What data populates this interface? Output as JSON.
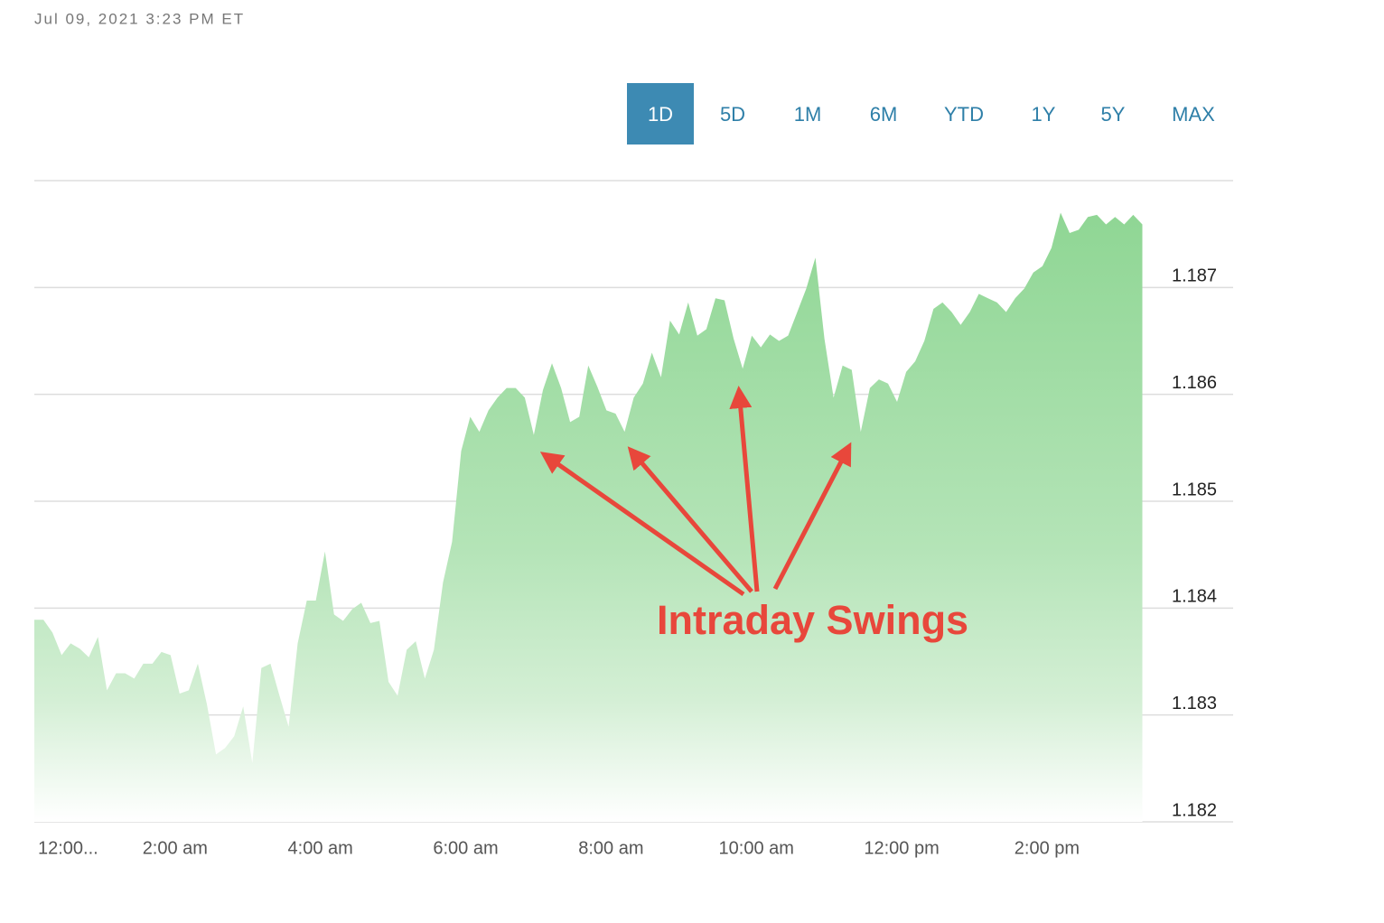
{
  "timestamp": "Jul 09, 2021 3:23 PM ET",
  "range_buttons": [
    "1D",
    "5D",
    "1M",
    "6M",
    "YTD",
    "1Y",
    "5Y",
    "MAX"
  ],
  "active_range": "1D",
  "chart_data": {
    "type": "area",
    "color": "#8fd694",
    "annotation": "Intraday Swings",
    "annotation_color": "#e8473b",
    "grid": true,
    "xlim": [
      0.0625,
      16.5625
    ],
    "ylim": [
      1.182,
      1.188
    ],
    "yticks": [
      1.182,
      1.183,
      1.184,
      1.185,
      1.186,
      1.187
    ],
    "xticks": [
      {
        "value": 0,
        "label": "12:00..."
      },
      {
        "value": 2,
        "label": "2:00 am"
      },
      {
        "value": 4,
        "label": "4:00 am"
      },
      {
        "value": 6,
        "label": "6:00 am"
      },
      {
        "value": 8,
        "label": "8:00 am"
      },
      {
        "value": 10,
        "label": "10:00 am"
      },
      {
        "value": 12,
        "label": "12:00 pm"
      },
      {
        "value": 14,
        "label": "2:00 pm"
      }
    ],
    "x": [
      0.0625,
      0.1875,
      0.3125,
      0.4375,
      0.5625,
      0.6875,
      0.8125,
      0.9375,
      1.0625,
      1.1875,
      1.3125,
      1.4375,
      1.5625,
      1.6875,
      1.8125,
      1.9375,
      2.0625,
      2.1875,
      2.3125,
      2.4375,
      2.5625,
      2.6875,
      2.8125,
      2.9375,
      3.0625,
      3.1875,
      3.3125,
      3.4375,
      3.5625,
      3.6875,
      3.8125,
      3.9375,
      4.0625,
      4.1875,
      4.3125,
      4.4375,
      4.5625,
      4.6875,
      4.8125,
      4.9375,
      5.0625,
      5.1875,
      5.3125,
      5.4375,
      5.5625,
      5.6875,
      5.8125,
      5.9375,
      6.0625,
      6.1875,
      6.3125,
      6.4375,
      6.5625,
      6.6875,
      6.8125,
      6.9375,
      7.0625,
      7.1875,
      7.3125,
      7.4375,
      7.5625,
      7.6875,
      7.8125,
      7.9375,
      8.0625,
      8.1875,
      8.3125,
      8.4375,
      8.5625,
      8.6875,
      8.8125,
      8.9375,
      9.0625,
      9.1875,
      9.3125,
      9.4375,
      9.5625,
      9.6875,
      9.8125,
      9.9375,
      10.0625,
      10.1875,
      10.3125,
      10.4375,
      10.5625,
      10.6875,
      10.8125,
      10.9375,
      11.0625,
      11.1875,
      11.3125,
      11.4375,
      11.5625,
      11.6875,
      11.8125,
      11.9375,
      12.0625,
      12.1875,
      12.3125,
      12.4375,
      12.5625,
      12.6875,
      12.8125,
      12.9375,
      13.0625,
      13.1875,
      13.3125,
      13.4375,
      13.5625,
      13.6875,
      13.8125,
      13.9375,
      14.0625,
      14.1875,
      14.3125,
      14.4375,
      14.5625,
      14.6875,
      14.8125,
      14.9375,
      15.0625,
      15.1875,
      15.3125
    ],
    "values": [
      1.18389,
      1.18389,
      1.18377,
      1.18356,
      1.18367,
      1.18362,
      1.18354,
      1.18373,
      1.18323,
      1.18339,
      1.18339,
      1.18334,
      1.18348,
      1.18348,
      1.18359,
      1.18356,
      1.1832,
      1.18323,
      1.18348,
      1.1831,
      1.18263,
      1.18269,
      1.1828,
      1.18308,
      1.18255,
      1.18344,
      1.18348,
      1.18318,
      1.18289,
      1.18367,
      1.18407,
      1.18407,
      1.18453,
      1.18394,
      1.18388,
      1.18399,
      1.18405,
      1.18386,
      1.18388,
      1.18331,
      1.18318,
      1.18361,
      1.18369,
      1.18334,
      1.18361,
      1.18424,
      1.18462,
      1.18547,
      1.18579,
      1.18565,
      1.18585,
      1.18597,
      1.18606,
      1.18606,
      1.18597,
      1.18562,
      1.18604,
      1.18629,
      1.18606,
      1.18574,
      1.18579,
      1.18627,
      1.18607,
      1.18585,
      1.18582,
      1.18565,
      1.18597,
      1.1861,
      1.18639,
      1.18616,
      1.18669,
      1.18656,
      1.18686,
      1.18655,
      1.18661,
      1.1869,
      1.18688,
      1.18652,
      1.18624,
      1.18655,
      1.18644,
      1.18656,
      1.1865,
      1.18655,
      1.18677,
      1.18699,
      1.18728,
      1.18652,
      1.18597,
      1.18627,
      1.18623,
      1.18565,
      1.18606,
      1.18614,
      1.1861,
      1.18593,
      1.18621,
      1.18631,
      1.1865,
      1.1868,
      1.18686,
      1.18677,
      1.18665,
      1.18677,
      1.18694,
      1.1869,
      1.18686,
      1.18677,
      1.1869,
      1.18699,
      1.18714,
      1.1872,
      1.18737,
      1.1877,
      1.18751,
      1.18754,
      1.18766,
      1.18768,
      1.18759,
      1.18766,
      1.18759,
      1.18768,
      1.18759
    ]
  }
}
